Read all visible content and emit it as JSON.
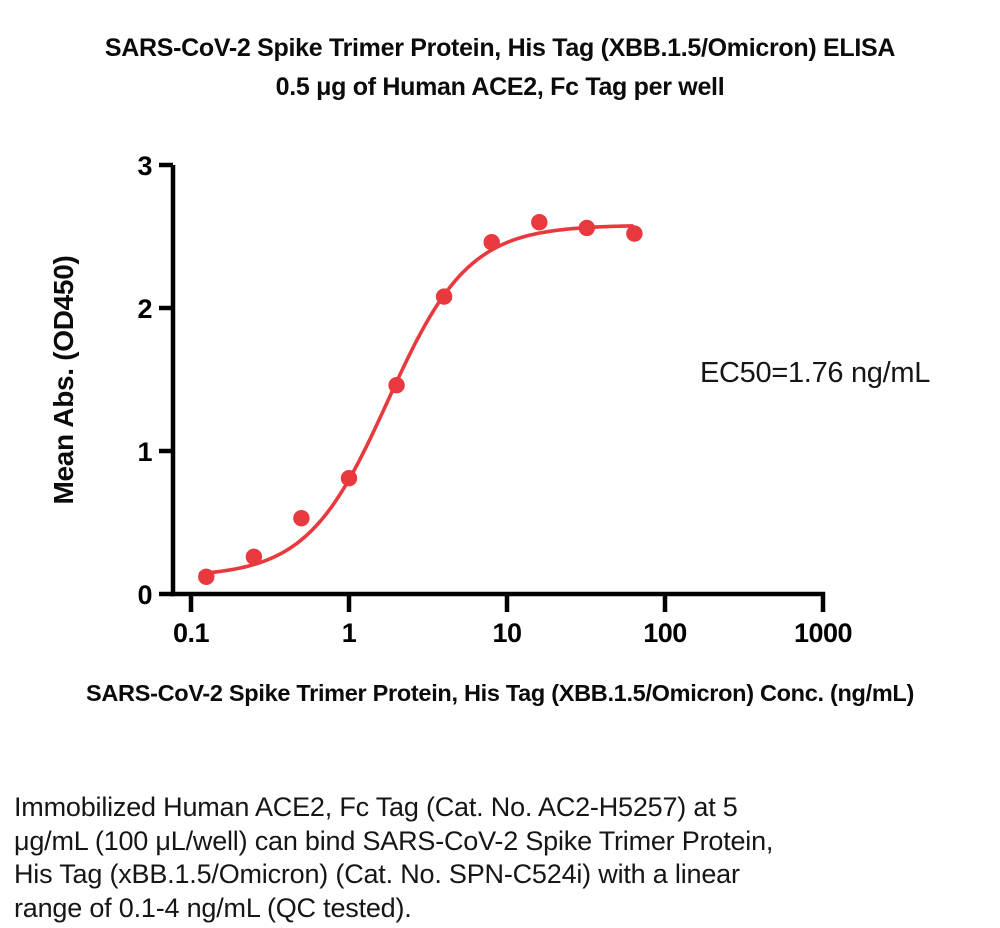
{
  "description": {
    "lines": [
      "Immobilized Human ACE2, Fc Tag (Cat. No. AC2-H5257) at 5",
      "μg/mL (100 μL/well) can bind SARS-CoV-2 Spike Trimer Protein,",
      "His Tag (xBB.1.5/Omicron) (Cat. No. SPN-C524i) with a linear",
      "range of 0.1-4 ng/mL (QC tested)."
    ]
  },
  "colors": {
    "accent_red": "#E8393E",
    "axis_black": "#000000",
    "text_black": "#161616"
  },
  "chart_data": {
    "type": "scatter",
    "title": "SARS-CoV-2 Spike Trimer Protein, His Tag (XBB.1.5/Omicron) ELISA",
    "subtitle": "0.5 μg of Human ACE2, Fc Tag per well",
    "xlabel": "SARS-CoV-2 Spike Trimer Protein, His Tag (XBB.1.5/Omicron) Conc. (ng/mL)",
    "ylabel": "Mean Abs. (OD450)",
    "x_scale": "log10",
    "xlim": [
      0.1,
      1000
    ],
    "ylim": [
      0,
      3
    ],
    "x_ticks": [
      0.1,
      1,
      10,
      100,
      1000
    ],
    "x_tick_labels": [
      "0.1",
      "1",
      "10",
      "100",
      "1000"
    ],
    "y_ticks": [
      0,
      1,
      2,
      3
    ],
    "y_tick_labels": [
      "0",
      "1",
      "2",
      "3"
    ],
    "grid": false,
    "legend": "none",
    "marker_color": "#E8393E",
    "line_color": "#E8393E",
    "axis_color": "#000000",
    "series": [
      {
        "x": [
          0.125,
          0.25,
          0.5,
          1,
          2,
          4,
          8,
          16,
          32,
          64
        ],
        "y": [
          0.12,
          0.26,
          0.53,
          0.81,
          1.46,
          2.08,
          2.46,
          2.6,
          2.56,
          2.52
        ]
      }
    ],
    "fit_curve": {
      "model": "4PL",
      "bottom": 0.12,
      "top": 2.58,
      "ec50": 1.76,
      "hill": 1.7,
      "x_range": [
        0.115,
        62
      ]
    },
    "ec50_text": "EC50=1.76 ng/mL"
  }
}
